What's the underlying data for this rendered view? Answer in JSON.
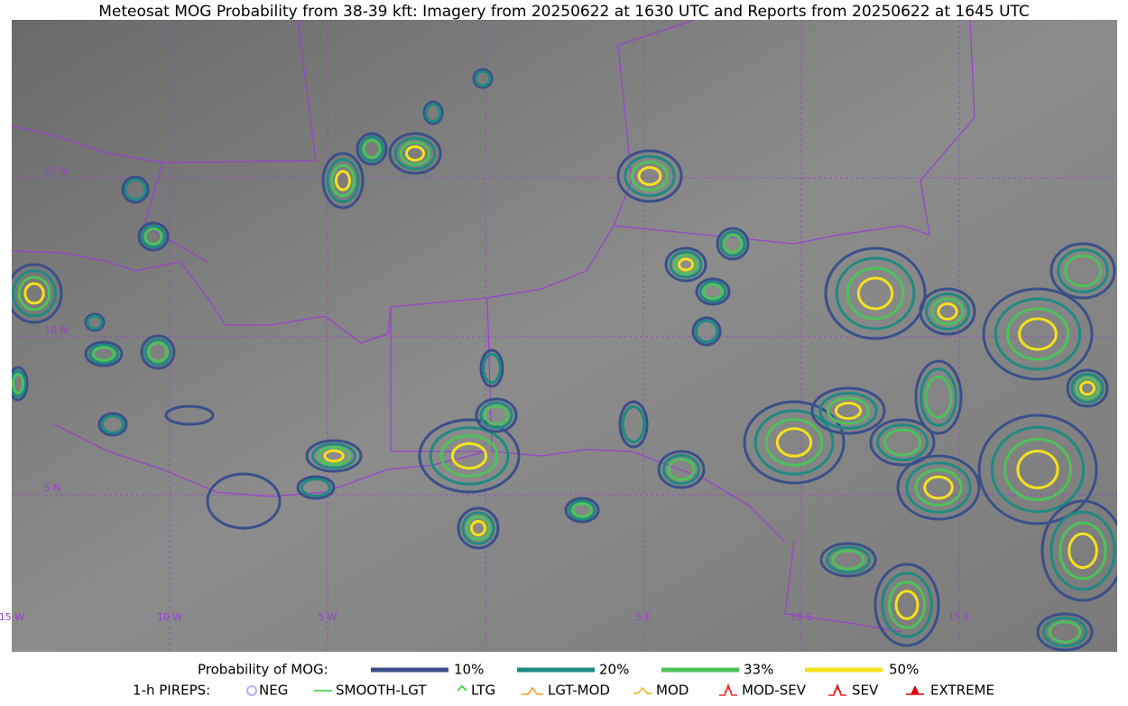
{
  "header": {
    "title": "Meteosat MOG Probability from 38-39 kft: Imagery from 20250622 at 1630 UTC and Reports from 20250622 at 1645 UTC"
  },
  "grid_labels": {
    "lat": [
      "15 N",
      "10 N",
      "5 N"
    ],
    "lon": [
      "15 W",
      "10 W",
      "5 W",
      "5 E",
      "10 E",
      "15 E"
    ]
  },
  "legend": {
    "probability": {
      "label": "Probability of MOG:",
      "items": [
        {
          "name": "10%",
          "color": "#3a4f8a"
        },
        {
          "name": "20%",
          "color": "#1f8a80"
        },
        {
          "name": "33%",
          "color": "#4cc35a"
        },
        {
          "name": "50%",
          "color": "#f5e21c"
        }
      ]
    },
    "pireps": {
      "label": "1-h PIREPS:",
      "items": [
        {
          "name": "NEG",
          "color": "#b0b0ff"
        },
        {
          "name": "SMOOTH-LGT",
          "color": "#33cc33"
        },
        {
          "name": "LTG",
          "color": "#22dd22"
        },
        {
          "name": "LGT-MOD",
          "color": "#f0a020"
        },
        {
          "name": "MOD",
          "color": "#f0b020"
        },
        {
          "name": "MOD-SEV",
          "color": "#ee3333"
        },
        {
          "name": "SEV",
          "color": "#dd2222"
        },
        {
          "name": "EXTREME",
          "color": "#dd0000"
        }
      ]
    }
  }
}
